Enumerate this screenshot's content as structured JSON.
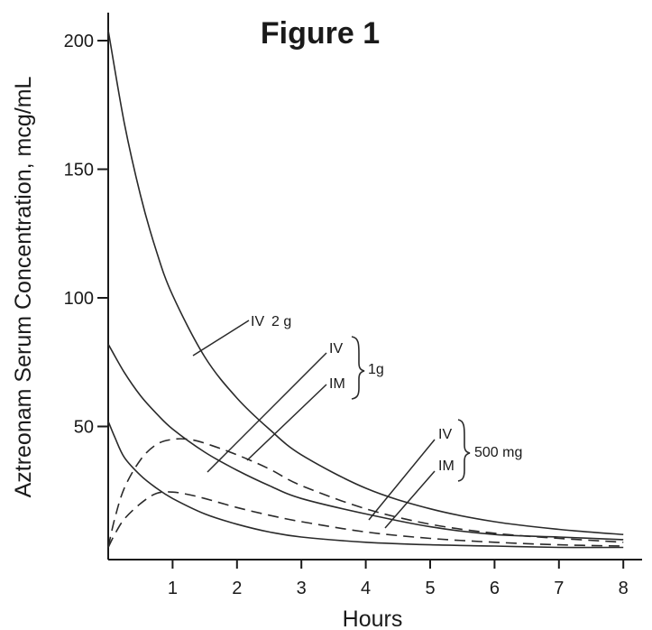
{
  "chart_data": {
    "type": "line",
    "title": "Figure 1",
    "xlabel": "Hours",
    "ylabel": "Aztreonam Serum Concentration, mcg/mL",
    "xlim": [
      0,
      8.3
    ],
    "ylim": [
      0,
      215
    ],
    "x_ticks": [
      1,
      2,
      3,
      4,
      5,
      6,
      7,
      8
    ],
    "y_ticks": [
      50,
      100,
      150,
      200
    ],
    "grid": false,
    "legend": "none",
    "series": [
      {
        "style": "solid",
        "x": [
          0,
          0.25,
          0.5,
          0.75,
          1,
          1.5,
          2,
          2.5,
          3,
          4,
          5,
          6,
          7,
          8
        ],
        "y": [
          204,
          168,
          140,
          118,
          101,
          77,
          61,
          49,
          39,
          26,
          18,
          13,
          10,
          8
        ]
      },
      {
        "style": "solid",
        "x": [
          0,
          0.25,
          0.5,
          0.75,
          1,
          1.5,
          2,
          2.5,
          3,
          4,
          5,
          6,
          7,
          8
        ],
        "y": [
          82,
          71,
          62,
          55,
          49,
          40,
          33,
          27,
          22,
          16,
          11,
          8,
          7,
          6
        ]
      },
      {
        "style": "solid",
        "x": [
          0,
          0.1,
          0.25,
          0.5,
          0.75,
          1,
          1.5,
          2,
          2.5,
          3,
          4,
          5,
          6,
          7,
          8
        ],
        "y": [
          52,
          46,
          38,
          31,
          26,
          22,
          16,
          12,
          9,
          7,
          5,
          4,
          3.5,
          3,
          3
        ]
      },
      {
        "style": "dashed",
        "x": [
          0,
          0.1,
          0.25,
          0.5,
          0.75,
          1,
          1.25,
          1.5,
          2,
          2.5,
          3,
          4,
          5,
          6,
          7,
          8
        ],
        "y": [
          3,
          14,
          26,
          37,
          43,
          45,
          45,
          43.5,
          39,
          33.5,
          27,
          18,
          12,
          8.5,
          6.5,
          5
        ]
      },
      {
        "style": "dashed",
        "x": [
          0,
          0.1,
          0.25,
          0.5,
          0.75,
          1,
          1.25,
          1.5,
          2,
          2.5,
          3,
          4,
          5,
          6,
          7,
          8
        ],
        "y": [
          3,
          8,
          14,
          20,
          24,
          24.5,
          23.5,
          22,
          18.5,
          15.5,
          13,
          9,
          6.5,
          5,
          4,
          3.5
        ]
      }
    ],
    "annotations": {
      "iv_2g": {
        "route": "IV",
        "dose": "2 g"
      },
      "group_1g": {
        "routes": [
          "IV",
          "IM"
        ],
        "dose": "1g"
      },
      "group_500mg": {
        "routes": [
          "IV",
          "IM"
        ],
        "dose": "500 mg"
      }
    }
  }
}
